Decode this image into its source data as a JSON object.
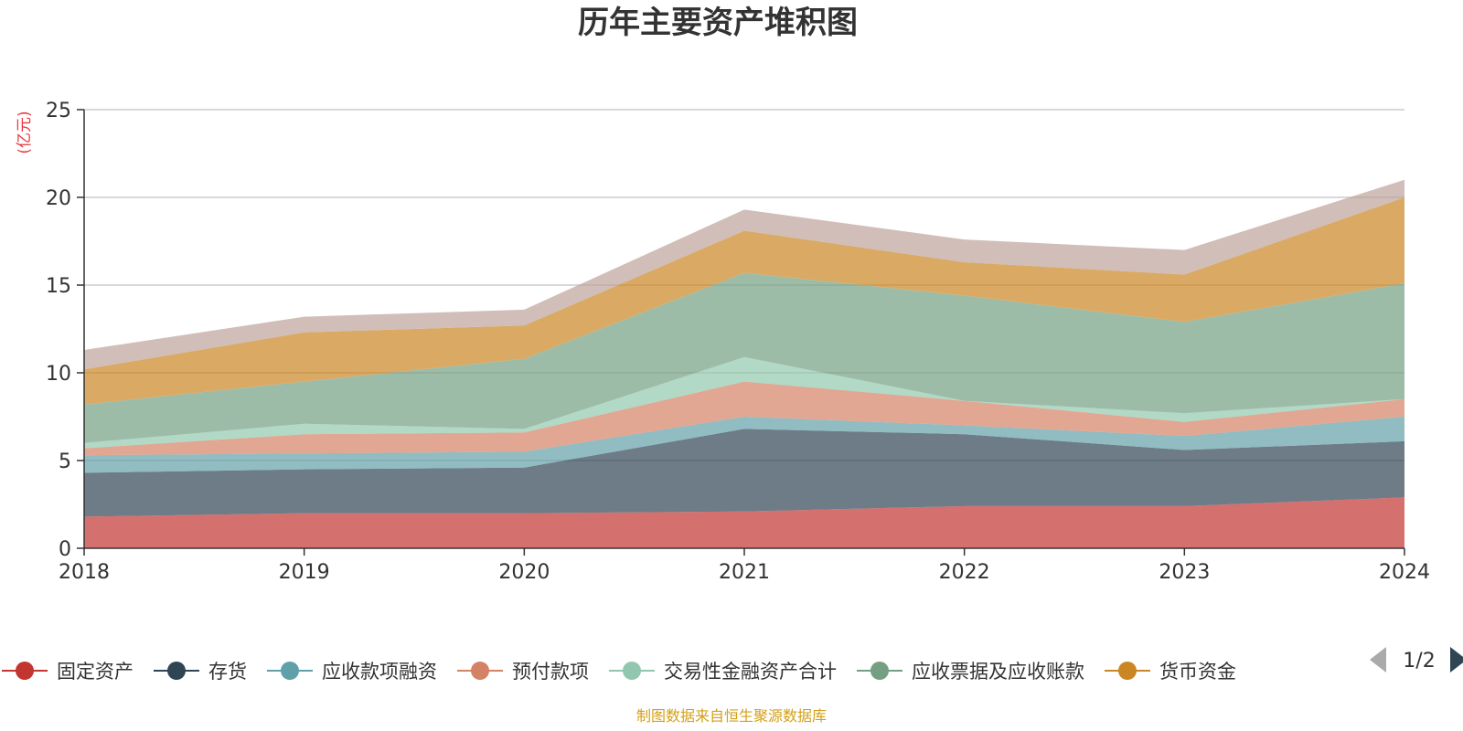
{
  "chart_data": {
    "type": "area",
    "stacked": true,
    "title": "历年主要资产堆积图",
    "ylabel": "(亿元)",
    "xlabel": "",
    "x": [
      "2018",
      "2019",
      "2020",
      "2021",
      "2022",
      "2023",
      "2024"
    ],
    "ylim": [
      0,
      25
    ],
    "yticks": [
      "0",
      "5",
      "10",
      "15",
      "20",
      "25"
    ],
    "grid": true,
    "legend_position": "bottom",
    "series": [
      {
        "name": "固定资产",
        "color": "#c23531",
        "values": [
          1.8,
          2.0,
          2.0,
          2.1,
          2.4,
          2.4,
          2.9
        ]
      },
      {
        "name": "存货",
        "color": "#2f4554",
        "values": [
          2.5,
          2.5,
          2.6,
          4.7,
          4.1,
          3.2,
          3.2
        ]
      },
      {
        "name": "应收款项融资",
        "color": "#61a0a8",
        "values": [
          1.0,
          0.9,
          0.9,
          0.7,
          0.5,
          0.8,
          1.4
        ]
      },
      {
        "name": "预付款项",
        "color": "#d48265",
        "values": [
          0.4,
          1.1,
          1.1,
          2.0,
          1.4,
          0.8,
          1.0
        ]
      },
      {
        "name": "交易性金融资产合计",
        "color": "#91c7ae",
        "values": [
          0.3,
          0.6,
          0.2,
          1.4,
          0.0,
          0.5,
          0.0
        ]
      },
      {
        "name": "应收票据及应收账款",
        "color": "#749f83",
        "values": [
          2.2,
          2.4,
          4.0,
          4.8,
          6.0,
          5.2,
          6.6
        ]
      },
      {
        "name": "货币资金",
        "color": "#ca8622",
        "values": [
          2.0,
          2.8,
          1.9,
          2.4,
          1.9,
          2.7,
          4.9
        ]
      },
      {
        "name": "",
        "color": "#bda29a",
        "values": [
          1.1,
          0.9,
          0.9,
          1.2,
          1.3,
          1.4,
          1.0
        ]
      }
    ],
    "legend_page": "1/2"
  },
  "source_note": "制图数据来自恒生聚源数据库"
}
